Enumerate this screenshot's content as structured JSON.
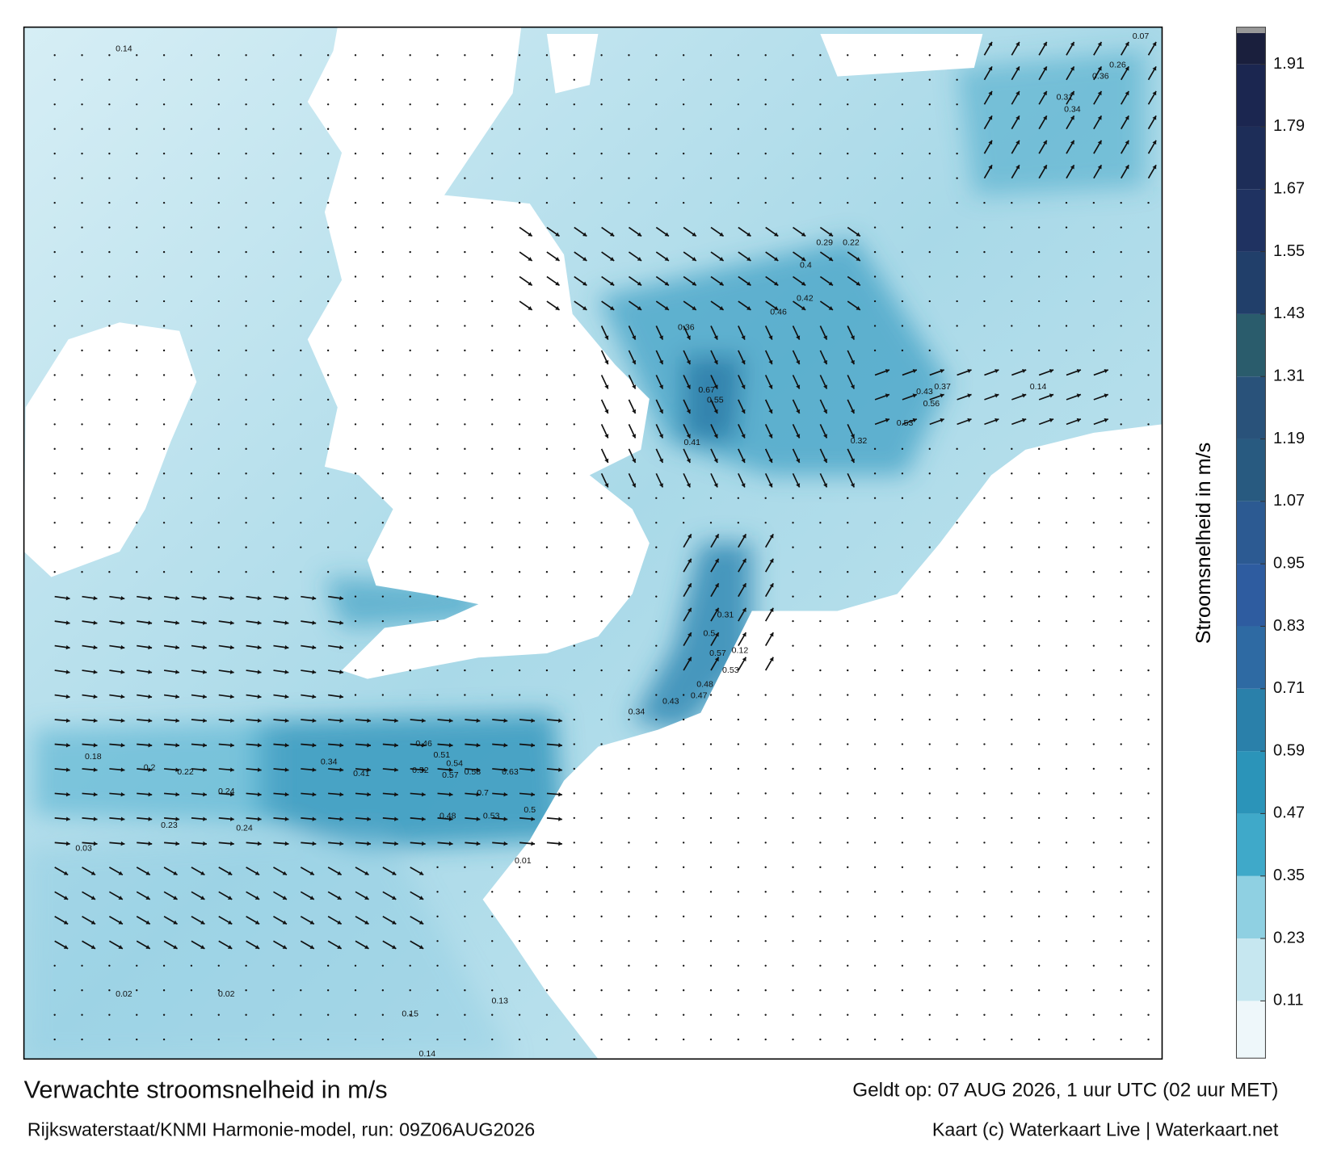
{
  "header": {
    "title": "Verwachte stroomsnelheid in m/s",
    "subtitle": "Rijkswaterstaat/KNMI Harmonie-model, run: 09Z06AUG2026",
    "valid_time": "Geldt op: 07 AUG 2026, 1 uur UTC (02 uur MET)",
    "credit": "Kaart (c) Waterkaart Live | Waterkaart.net"
  },
  "colorbar": {
    "label": "Stroomsnelheid in m/s",
    "lim": [
      0,
      1.97
    ],
    "ticks": [
      0.11,
      0.23,
      0.35,
      0.47,
      0.59,
      0.71,
      0.83,
      0.95,
      1.07,
      1.19,
      1.31,
      1.43,
      1.55,
      1.67,
      1.79,
      1.91
    ],
    "colors": [
      "#eef7fa",
      "#c6e7f0",
      "#8fd0e2",
      "#3fa9c9",
      "#2b94b9",
      "#2a80aa",
      "#2e6aa3",
      "#2e5ca0",
      "#2c5a92",
      "#285a80",
      "#29527a",
      "#2a5c6c",
      "#213f6a",
      "#1f3261",
      "#1d2d58",
      "#1b2650",
      "#1a1f3d"
    ]
  },
  "map": {
    "labels": [
      0.7,
      0.63,
      0.58,
      0.57,
      0.54,
      0.51,
      0.46,
      0.52,
      0.5,
      0.53,
      0.48,
      0.34,
      0.41,
      0.24,
      0.2,
      0.22,
      0.23,
      0.24,
      0.18,
      0.03,
      0.67,
      0.41,
      0.55,
      0.42,
      0.46,
      0.36,
      0.32,
      0.53,
      0.56,
      0.43,
      0.37,
      0.14,
      0.5,
      0.31,
      0.57,
      0.48,
      0.47,
      0.53,
      0.12,
      0.34,
      0.43,
      0.4,
      0.22,
      0.29,
      0.31,
      0.34,
      0.36,
      0.26,
      0.07,
      0.14,
      0.02,
      0.02,
      0.14,
      0.15,
      0.01,
      0.13
    ]
  }
}
